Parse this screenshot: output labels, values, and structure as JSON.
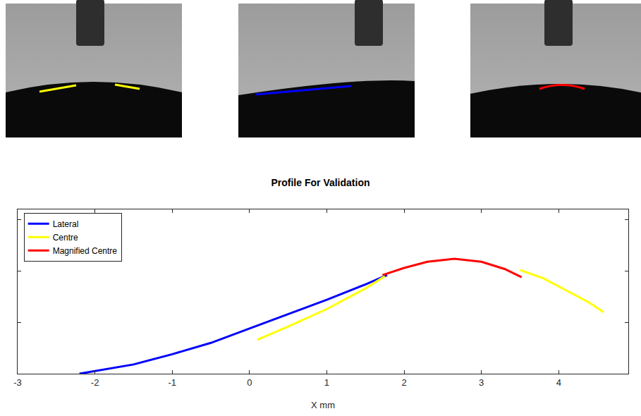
{
  "chart_data": {
    "type": "line",
    "title": "Profile For Validation",
    "x_label": "X mm",
    "xlim": [
      -3,
      4.9
    ],
    "xticks": [
      -3,
      -2,
      -1,
      0,
      1,
      2,
      3,
      4
    ],
    "ylim": [
      0,
      1.6
    ],
    "yticks": [
      0,
      0.5,
      1,
      1.5
    ],
    "tick_labels": "x",
    "grid": false,
    "legend": "upper left",
    "series": [
      {
        "name": "Lateral",
        "color": "#0000ff",
        "x": [
          -2.2,
          -1.5,
          -1,
          -0.5,
          0,
          0.5,
          1,
          1.5,
          1.78
        ],
        "values": [
          0,
          0.09,
          0.19,
          0.3,
          0.44,
          0.58,
          0.72,
          0.87,
          0.96
        ]
      },
      {
        "name": "Centre",
        "color": "#ffff00",
        "x": [
          0.1,
          0.5,
          1,
          1.5,
          1.75,
          2.6,
          3.5,
          3.8,
          4.1,
          4.4,
          4.58
        ],
        "values": [
          0.33,
          0.46,
          0.63,
          0.83,
          0.95,
          null,
          1.01,
          0.93,
          0.81,
          0.69,
          0.6
        ]
      },
      {
        "name": "Magnified Centre",
        "color": "#ff0000",
        "x": [
          1.72,
          2,
          2.3,
          2.65,
          3,
          3.3,
          3.52
        ],
        "values": [
          0.96,
          1.03,
          1.09,
          1.12,
          1.09,
          1.02,
          0.94
        ]
      }
    ]
  }
}
